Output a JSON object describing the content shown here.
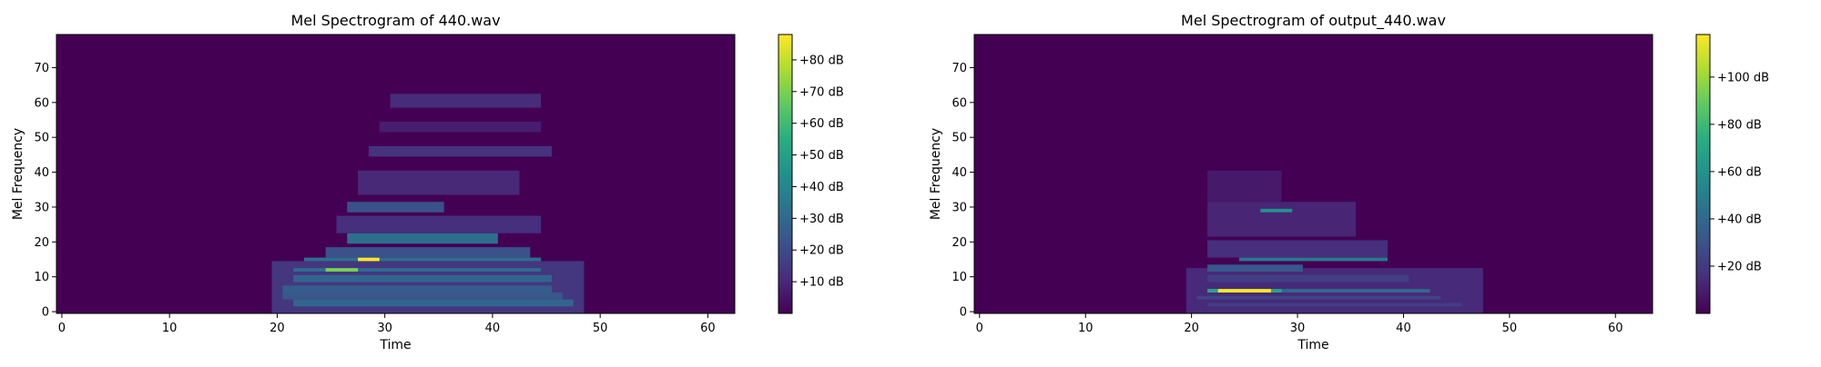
{
  "chart_data": [
    {
      "type": "heatmap",
      "title": "Mel Spectrogram of 440.wav",
      "xlabel": "Time",
      "ylabel": "Mel Frequency",
      "xlim": [
        -0.5,
        62.5
      ],
      "ylim": [
        -0.5,
        79.5
      ],
      "x_ticks": [
        "0",
        "10",
        "20",
        "30",
        "40",
        "50",
        "60"
      ],
      "y_ticks": [
        "0",
        "10",
        "20",
        "30",
        "40",
        "50",
        "60",
        "70"
      ],
      "colormap": "viridis",
      "colorbar": {
        "range": [
          0,
          88
        ],
        "ticks": [
          "+10 dB",
          "+20 dB",
          "+30 dB",
          "+40 dB",
          "+50 dB",
          "+60 dB",
          "+70 dB",
          "+80 dB"
        ],
        "tick_values": [
          10,
          20,
          30,
          40,
          50,
          60,
          70,
          80
        ]
      },
      "background": 0,
      "regions": [
        {
          "t": [
            20,
            48
          ],
          "f": [
            0,
            14
          ],
          "value": 14
        },
        {
          "t": [
            22,
            47
          ],
          "f": [
            2,
            3
          ],
          "value": 28
        },
        {
          "t": [
            21,
            46
          ],
          "f": [
            4,
            5
          ],
          "value": 24
        },
        {
          "t": [
            21,
            45
          ],
          "f": [
            6,
            7
          ],
          "value": 26
        },
        {
          "t": [
            22,
            45
          ],
          "f": [
            9,
            10
          ],
          "value": 28
        },
        {
          "t": [
            22,
            44
          ],
          "f": [
            12,
            12
          ],
          "value": 30
        },
        {
          "t": [
            25,
            27
          ],
          "f": [
            12,
            12
          ],
          "value": 70
        },
        {
          "t": [
            23,
            44
          ],
          "f": [
            15,
            15
          ],
          "value": 32
        },
        {
          "t": [
            28,
            29
          ],
          "f": [
            15,
            15
          ],
          "value": 88
        },
        {
          "t": [
            25,
            43
          ],
          "f": [
            16,
            18
          ],
          "value": 22
        },
        {
          "t": [
            27,
            40
          ],
          "f": [
            20,
            22
          ],
          "value": 32
        },
        {
          "t": [
            26,
            44
          ],
          "f": [
            23,
            27
          ],
          "value": 12
        },
        {
          "t": [
            27,
            35
          ],
          "f": [
            29,
            31
          ],
          "value": 22
        },
        {
          "t": [
            28,
            42
          ],
          "f": [
            34,
            40
          ],
          "value": 10
        },
        {
          "t": [
            29,
            45
          ],
          "f": [
            45,
            47
          ],
          "value": 13
        },
        {
          "t": [
            30,
            44
          ],
          "f": [
            52,
            54
          ],
          "value": 7
        },
        {
          "t": [
            31,
            44
          ],
          "f": [
            59,
            62
          ],
          "value": 11
        }
      ]
    },
    {
      "type": "heatmap",
      "title": "Mel Spectrogram of output_440.wav",
      "xlabel": "Time",
      "ylabel": "Mel Frequency",
      "xlim": [
        -0.5,
        63.5
      ],
      "ylim": [
        -0.5,
        79.5
      ],
      "x_ticks": [
        "0",
        "10",
        "20",
        "30",
        "40",
        "50",
        "60"
      ],
      "y_ticks": [
        "0",
        "10",
        "20",
        "30",
        "40",
        "50",
        "60",
        "70"
      ],
      "colormap": "viridis",
      "colorbar": {
        "range": [
          0,
          118
        ],
        "ticks": [
          "+20 dB",
          "+40 dB",
          "+60 dB",
          "+80 dB",
          "+100 dB"
        ],
        "tick_values": [
          20,
          40,
          60,
          80,
          100
        ]
      },
      "background": 0,
      "regions": [
        {
          "t": [
            20,
            47
          ],
          "f": [
            0,
            12
          ],
          "value": 14
        },
        {
          "t": [
            22,
            45
          ],
          "f": [
            2,
            2
          ],
          "value": 22
        },
        {
          "t": [
            21,
            43
          ],
          "f": [
            4,
            4
          ],
          "value": 24
        },
        {
          "t": [
            22,
            42
          ],
          "f": [
            6,
            6
          ],
          "value": 40
        },
        {
          "t": [
            22,
            28
          ],
          "f": [
            6,
            6
          ],
          "value": 70
        },
        {
          "t": [
            23,
            27
          ],
          "f": [
            6,
            6
          ],
          "value": 118
        },
        {
          "t": [
            22,
            40
          ],
          "f": [
            9,
            10
          ],
          "value": 22
        },
        {
          "t": [
            22,
            30
          ],
          "f": [
            12,
            13
          ],
          "value": 32
        },
        {
          "t": [
            25,
            38
          ],
          "f": [
            15,
            15
          ],
          "value": 48
        },
        {
          "t": [
            22,
            38
          ],
          "f": [
            16,
            20
          ],
          "value": 16
        },
        {
          "t": [
            23,
            28
          ],
          "f": [
            24,
            26
          ],
          "value": 35
        },
        {
          "t": [
            22,
            35
          ],
          "f": [
            22,
            31
          ],
          "value": 12
        },
        {
          "t": [
            27,
            29
          ],
          "f": [
            29,
            29
          ],
          "value": 60
        },
        {
          "t": [
            22,
            28
          ],
          "f": [
            32,
            40
          ],
          "value": 8
        }
      ]
    }
  ]
}
